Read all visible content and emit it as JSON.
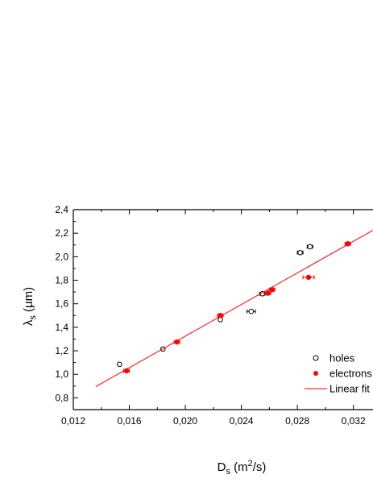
{
  "chart_data": {
    "type": "scatter",
    "xlabel": "D",
    "xlabel_sub": "s",
    "xlabel_unit": " (m",
    "xlabel_sup": "2",
    "xlabel_end": "/s)",
    "ylabel": "λ",
    "ylabel_sub": "s",
    "ylabel_unit": " (µm)",
    "xlim": [
      0.012,
      0.0334
    ],
    "ylim": [
      0.7,
      2.4
    ],
    "x_ticks": [
      {
        "value": 0.012,
        "label": "0,012"
      },
      {
        "value": 0.016,
        "label": "0,016"
      },
      {
        "value": 0.02,
        "label": "0,020"
      },
      {
        "value": 0.024,
        "label": "0,024"
      },
      {
        "value": 0.028,
        "label": "0,028"
      },
      {
        "value": 0.032,
        "label": "0,032"
      }
    ],
    "x_minor_step": 0.002,
    "y_ticks": [
      {
        "value": 0.8,
        "label": "0,8"
      },
      {
        "value": 1.0,
        "label": "1,0"
      },
      {
        "value": 1.2,
        "label": "1,2"
      },
      {
        "value": 1.4,
        "label": "1,4"
      },
      {
        "value": 1.6,
        "label": "1,6"
      },
      {
        "value": 1.8,
        "label": "1,8"
      },
      {
        "value": 2.0,
        "label": "2,0"
      },
      {
        "value": 2.2,
        "label": "2,2"
      },
      {
        "value": 2.4,
        "label": "2,4"
      }
    ],
    "y_minor_step": 0.1,
    "grid": false,
    "legend_position": "bottom-right",
    "series": [
      {
        "name": "holes",
        "marker": "open-circle",
        "color": "#000000",
        "points": [
          {
            "x": 0.0153,
            "y": 1.085,
            "xerr": 0.0001
          },
          {
            "x": 0.0184,
            "y": 1.215,
            "xerr": 0.0001
          },
          {
            "x": 0.0225,
            "y": 1.465,
            "xerr": 0.0001
          },
          {
            "x": 0.0247,
            "y": 1.535,
            "xerr": 0.0003
          },
          {
            "x": 0.0255,
            "y": 1.685,
            "xerr": 0.0002
          },
          {
            "x": 0.0282,
            "y": 2.035,
            "xerr": 0.0002
          },
          {
            "x": 0.0289,
            "y": 2.085,
            "xerr": 0.0002
          }
        ]
      },
      {
        "name": "electrons",
        "marker": "filled-circle",
        "color": "#ff0000",
        "points": [
          {
            "x": 0.0158,
            "y": 1.03,
            "xerr": 0.0002
          },
          {
            "x": 0.0194,
            "y": 1.275,
            "xerr": 0.0002
          },
          {
            "x": 0.0225,
            "y": 1.5,
            "xerr": 0.0002
          },
          {
            "x": 0.0259,
            "y": 1.69,
            "xerr": 0.0002
          },
          {
            "x": 0.0262,
            "y": 1.72,
            "xerr": 0.0002
          },
          {
            "x": 0.0288,
            "y": 1.825,
            "xerr": 0.0004
          },
          {
            "x": 0.0316,
            "y": 2.11,
            "xerr": 0.0002
          }
        ]
      },
      {
        "name": "Linear fit",
        "marker": "line",
        "color": "#ff0000",
        "points": [
          {
            "x": 0.0136,
            "y": 0.895
          },
          {
            "x": 0.0334,
            "y": 2.225
          }
        ]
      }
    ]
  }
}
